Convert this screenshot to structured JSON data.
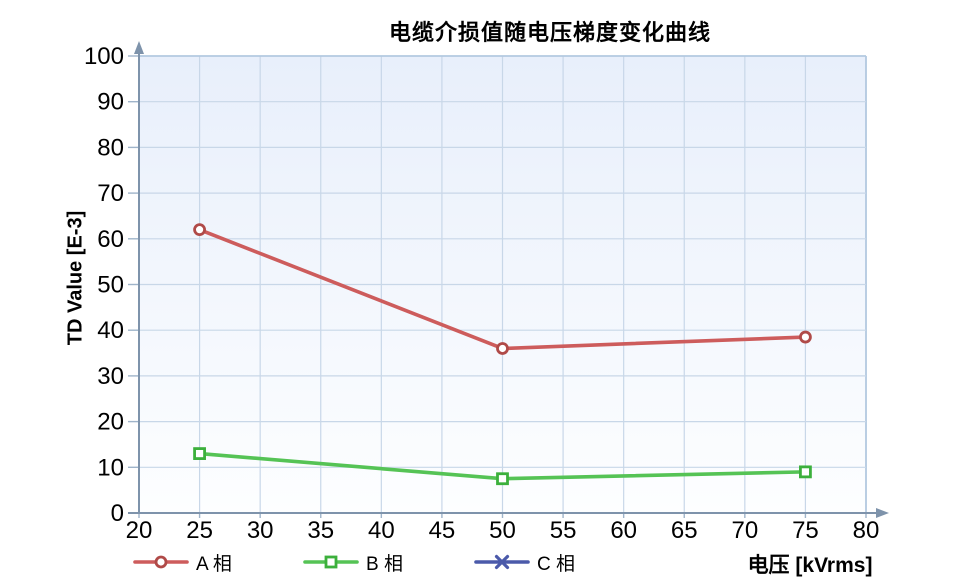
{
  "chart_data": {
    "type": "line",
    "title": "电缆介损值随电压梯度变化曲线",
    "xlabel": "电压 [kVrms]",
    "ylabel": "TD Value [E-3]",
    "xlim": [
      20,
      80
    ],
    "ylim": [
      0,
      100
    ],
    "x_ticks": [
      20,
      25,
      30,
      35,
      40,
      45,
      50,
      55,
      60,
      65,
      70,
      75,
      80
    ],
    "y_ticks": [
      0,
      10,
      20,
      30,
      40,
      50,
      60,
      70,
      80,
      90,
      100
    ],
    "grid": true,
    "legend_position": "bottom",
    "x": [
      25,
      50,
      75
    ],
    "series": [
      {
        "name": "A 相",
        "marker": "circle",
        "color": "#cd5c5c",
        "marker_stroke": "#b04a48",
        "values": [
          62,
          36,
          38.5
        ]
      },
      {
        "name": "B 相",
        "marker": "square",
        "color": "#55c355",
        "marker_stroke": "#3cb03c",
        "values": [
          13,
          7.5,
          9
        ]
      },
      {
        "name": "C 相",
        "marker": "x",
        "color": "#4b5aaa",
        "marker_stroke": "#4b5aaa",
        "values": []
      }
    ]
  },
  "colors": {
    "axis": "#7e93ab",
    "grid": "#c8d7e8",
    "tick": "#9fb4ca",
    "plot_border": "#b3c9e0",
    "bg_top": "#e8effb",
    "bg_bottom": "#fdfeff",
    "text": "#000000"
  }
}
